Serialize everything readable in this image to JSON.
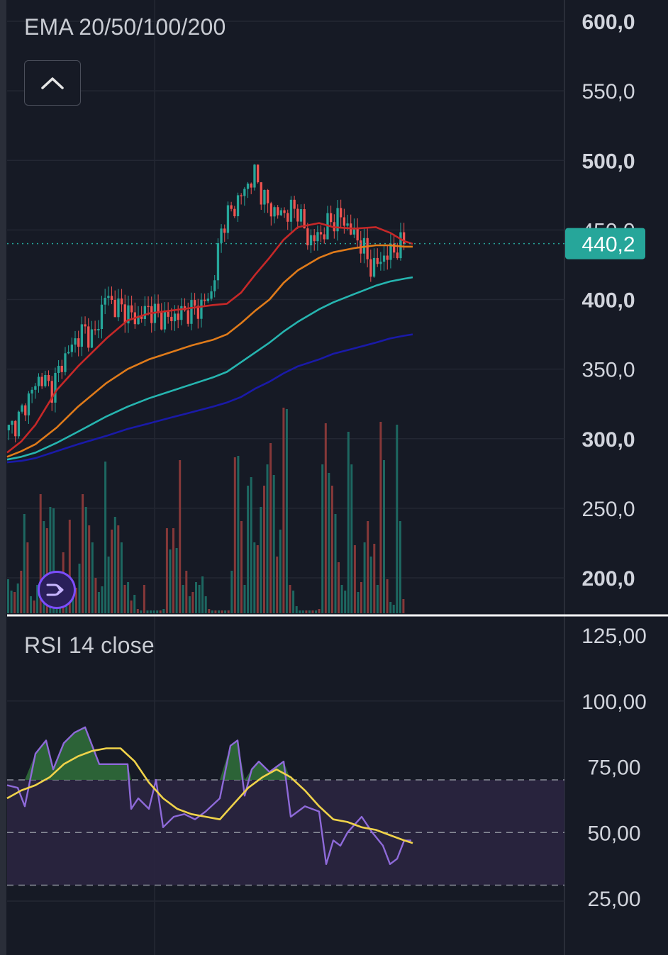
{
  "price_pane": {
    "indicator_label": "EMA 20/50/100/200",
    "last_price_label": "440,2",
    "colors": {
      "up": "#26a69a",
      "down": "#ef5350",
      "ema20": "#c62828",
      "ema50": "#e07b1a",
      "ema100": "#26b5b0",
      "ema200": "#1a1aa8",
      "price_tag": "#26a69a"
    }
  },
  "rsi_pane": {
    "indicator_label": "RSI 14 close",
    "colors": {
      "rsi": "#8e6ad9",
      "signal": "#f0d34a",
      "band": "#2a2540"
    }
  },
  "icons": {
    "collapse": "chevron-up-icon",
    "replay": "replay-arrow-icon"
  },
  "chart_data": [
    {
      "type": "line",
      "title": "EMA 20/50/100/200",
      "ylim": [
        170,
        615
      ],
      "y_ticks": [
        "600,0",
        "550,0",
        "500,0",
        "450,0",
        "400,0",
        "350,0",
        "300,0",
        "250,0",
        "200,0"
      ],
      "last_value": 440.2,
      "price_line": [
        306,
        315,
        332,
        345,
        335,
        355,
        368,
        378,
        372,
        403,
        395,
        392,
        385,
        394,
        388,
        386,
        390,
        392,
        395,
        405,
        455,
        465,
        478,
        490,
        470,
        462,
        462,
        466,
        443,
        445,
        455,
        460,
        450,
        440,
        422,
        430,
        435,
        441
      ],
      "series": [
        {
          "name": "EMA 20",
          "x": [
            0,
            20,
            40,
            70,
            100,
            140,
            170,
            200,
            230,
            260,
            290,
            310,
            330,
            350,
            370,
            390,
            410,
            440,
            460,
            490,
            520,
            540,
            560,
            572
          ],
          "values": [
            290,
            298,
            310,
            335,
            352,
            372,
            385,
            390,
            392,
            394,
            396,
            397,
            405,
            418,
            430,
            443,
            452,
            455,
            452,
            451,
            452,
            448,
            442,
            440
          ]
        },
        {
          "name": "EMA 50",
          "x": [
            0,
            20,
            40,
            70,
            100,
            140,
            170,
            200,
            230,
            260,
            290,
            310,
            330,
            350,
            370,
            390,
            410,
            440,
            460,
            490,
            520,
            540,
            560,
            572
          ],
          "values": [
            287,
            291,
            296,
            308,
            323,
            340,
            350,
            357,
            362,
            367,
            371,
            375,
            383,
            392,
            400,
            412,
            421,
            430,
            434,
            437,
            439,
            439,
            438,
            438
          ]
        },
        {
          "name": "EMA 100",
          "x": [
            0,
            20,
            40,
            70,
            100,
            140,
            170,
            200,
            230,
            260,
            290,
            310,
            330,
            350,
            370,
            390,
            410,
            440,
            460,
            490,
            520,
            540,
            560,
            572
          ],
          "values": [
            285,
            287,
            290,
            297,
            305,
            316,
            323,
            329,
            334,
            339,
            344,
            348,
            355,
            362,
            369,
            377,
            384,
            393,
            398,
            404,
            410,
            413,
            415,
            416
          ]
        },
        {
          "name": "EMA 200",
          "x": [
            0,
            20,
            40,
            70,
            100,
            140,
            170,
            200,
            230,
            260,
            290,
            310,
            330,
            350,
            370,
            390,
            410,
            440,
            460,
            490,
            520,
            540,
            560,
            572
          ],
          "values": [
            283,
            284,
            286,
            291,
            296,
            302,
            307,
            311,
            315,
            319,
            323,
            326,
            330,
            336,
            341,
            347,
            352,
            357,
            361,
            365,
            369,
            372,
            374,
            375
          ]
        }
      ]
    },
    {
      "type": "line",
      "title": "RSI 14 close",
      "ylim": [
        8,
        130
      ],
      "y_ticks": [
        "125,00",
        "100,00",
        "75,00",
        "50,00",
        "25,00"
      ],
      "bands": [
        70,
        50,
        30
      ],
      "series": [
        {
          "name": "RSI",
          "x": [
            0,
            15,
            25,
            40,
            55,
            65,
            80,
            95,
            110,
            130,
            150,
            170,
            175,
            185,
            200,
            210,
            220,
            235,
            250,
            265,
            280,
            300,
            315,
            325,
            335,
            345,
            355,
            370,
            390,
            400,
            420,
            440,
            450,
            460,
            470,
            480,
            490,
            500,
            515,
            530,
            540,
            550,
            560,
            570
          ],
          "values": [
            68,
            67,
            60,
            80,
            85,
            74,
            84,
            88,
            90,
            76,
            76,
            76,
            59,
            63,
            59,
            70,
            52,
            56,
            57,
            55,
            58,
            63,
            83,
            85,
            64,
            74,
            77,
            73,
            77,
            56,
            60,
            58,
            38,
            47,
            45,
            50,
            53,
            56,
            50,
            45,
            38,
            40,
            47,
            47
          ]
        },
        {
          "name": "Signal",
          "x": [
            0,
            20,
            40,
            60,
            80,
            100,
            120,
            140,
            160,
            180,
            200,
            220,
            240,
            260,
            280,
            300,
            320,
            340,
            360,
            380,
            400,
            420,
            440,
            460,
            480,
            500,
            520,
            540,
            560,
            572
          ],
          "values": [
            63,
            66,
            68,
            71,
            76,
            79,
            81,
            82,
            82,
            77,
            69,
            63,
            59,
            57,
            56,
            55,
            61,
            67,
            71,
            74,
            71,
            66,
            60,
            55,
            54,
            52,
            51,
            49,
            47,
            46
          ]
        }
      ]
    }
  ]
}
